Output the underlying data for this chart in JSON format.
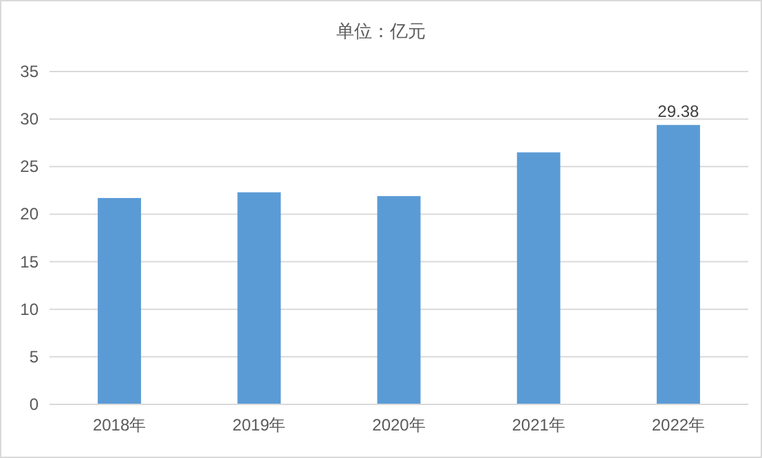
{
  "chart_data": {
    "type": "bar",
    "title": "单位：亿元",
    "categories": [
      "2018年",
      "2019年",
      "2020年",
      "2021年",
      "2022年"
    ],
    "values": [
      21.7,
      22.3,
      21.9,
      26.5,
      29.38
    ],
    "value_labels": [
      null,
      null,
      null,
      null,
      "29.38"
    ],
    "color": "#5b9bd5",
    "ylim": [
      0,
      35
    ],
    "yticks": [
      0,
      5,
      10,
      15,
      20,
      25,
      30,
      35
    ],
    "grid": "y"
  }
}
